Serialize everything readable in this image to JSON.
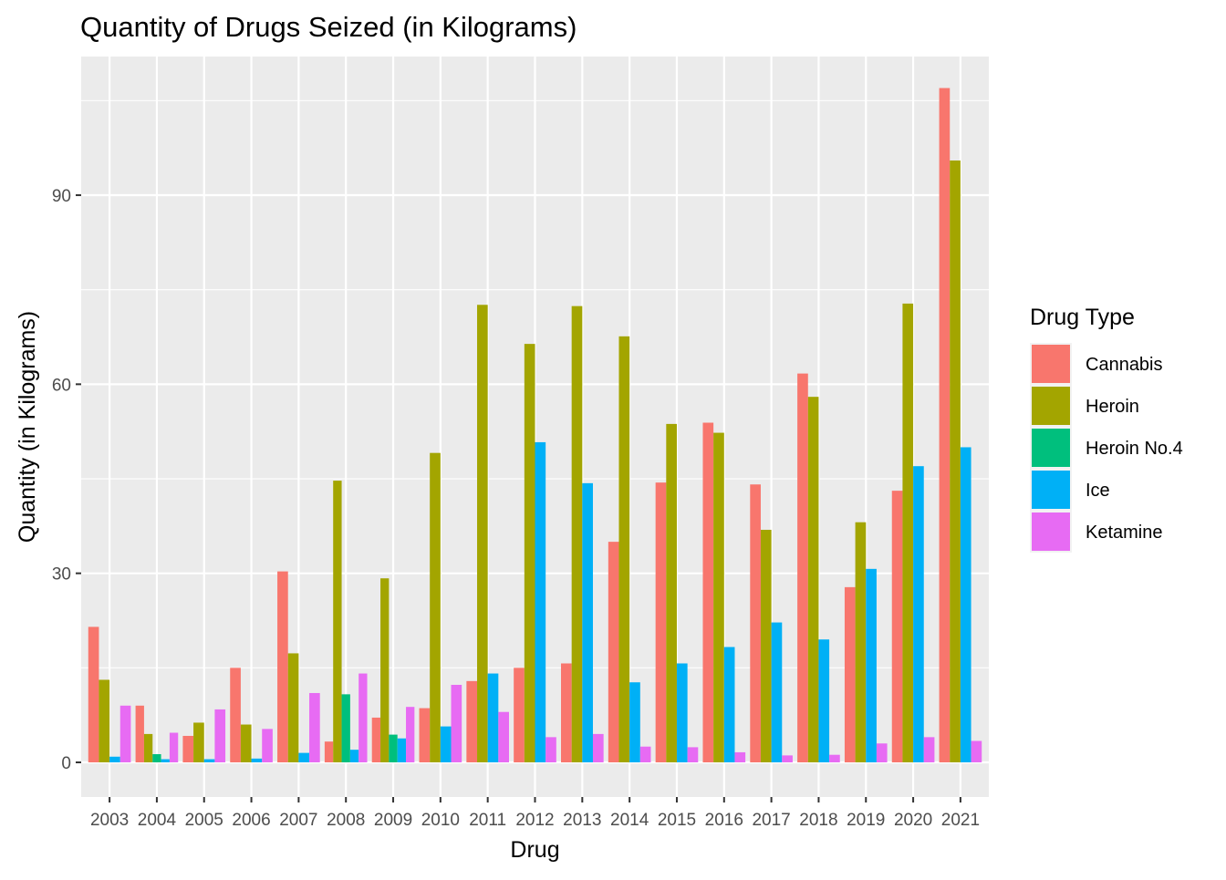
{
  "chart_data": {
    "type": "bar",
    "title": "Quantity of Drugs Seized (in Kilograms)",
    "xlabel": "Drug",
    "ylabel": "Quantity (in Kilograms)",
    "categories": [
      "2003",
      "2004",
      "2005",
      "2006",
      "2007",
      "2008",
      "2009",
      "2010",
      "2011",
      "2012",
      "2013",
      "2014",
      "2015",
      "2016",
      "2017",
      "2018",
      "2019",
      "2020",
      "2021"
    ],
    "ylim": [
      -5.5,
      112
    ],
    "yticks": [
      0,
      30,
      60,
      90
    ],
    "grid": true,
    "legend": {
      "title": "Drug Type",
      "position": "right"
    },
    "series": [
      {
        "name": "Cannabis",
        "color": "#F8766D",
        "values": [
          21.5,
          9.0,
          4.2,
          15.0,
          30.3,
          3.3,
          7.1,
          8.6,
          12.9,
          15.0,
          15.7,
          35.0,
          44.4,
          53.9,
          44.1,
          61.7,
          27.8,
          43.1,
          107.0
        ]
      },
      {
        "name": "Heroin",
        "color": "#A3A500",
        "values": [
          13.1,
          4.5,
          6.3,
          6.0,
          17.3,
          44.7,
          29.2,
          49.1,
          72.6,
          66.4,
          72.4,
          67.6,
          53.7,
          52.3,
          36.9,
          58.0,
          38.1,
          72.8,
          95.5
        ]
      },
      {
        "name": "Heroin No.4",
        "color": "#00BF7D",
        "values": [
          null,
          1.3,
          null,
          null,
          null,
          10.8,
          4.4,
          null,
          null,
          null,
          null,
          null,
          null,
          null,
          null,
          null,
          null,
          null,
          null
        ]
      },
      {
        "name": "Ice",
        "color": "#00B0F6",
        "values": [
          0.9,
          0.5,
          0.5,
          0.6,
          1.5,
          2.0,
          3.8,
          5.7,
          14.1,
          50.8,
          44.3,
          12.7,
          15.7,
          18.3,
          22.2,
          19.5,
          30.7,
          47.0,
          50.0
        ]
      },
      {
        "name": "Ketamine",
        "color": "#E76BF3",
        "values": [
          9.0,
          4.7,
          8.4,
          5.3,
          11.0,
          14.1,
          8.8,
          12.3,
          8.0,
          4.0,
          4.5,
          2.5,
          2.4,
          1.6,
          1.1,
          1.2,
          3.0,
          4.0,
          3.4
        ]
      }
    ]
  }
}
